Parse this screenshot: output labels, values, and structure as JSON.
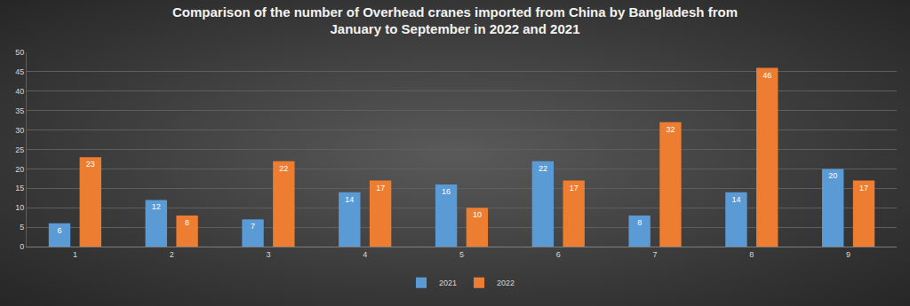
{
  "chart_data": {
    "type": "bar",
    "title": "Comparison of the number of Overhead cranes imported from China by Bangladesh from January to September in 2022 and 2021",
    "categories": [
      "1",
      "2",
      "3",
      "4",
      "5",
      "6",
      "7",
      "8",
      "9"
    ],
    "series": [
      {
        "name": "2021",
        "color": "#5b9bd5",
        "values": [
          6,
          12,
          7,
          14,
          16,
          22,
          8,
          14,
          20
        ]
      },
      {
        "name": "2022",
        "color": "#ed7d31",
        "values": [
          23,
          8,
          22,
          17,
          10,
          17,
          32,
          46,
          17
        ]
      }
    ],
    "ylim": [
      0,
      50
    ],
    "yticks": [
      0,
      5,
      10,
      15,
      20,
      25,
      30,
      35,
      40,
      45,
      50
    ],
    "grid": true,
    "legend": "bottom",
    "data_labels": true
  }
}
